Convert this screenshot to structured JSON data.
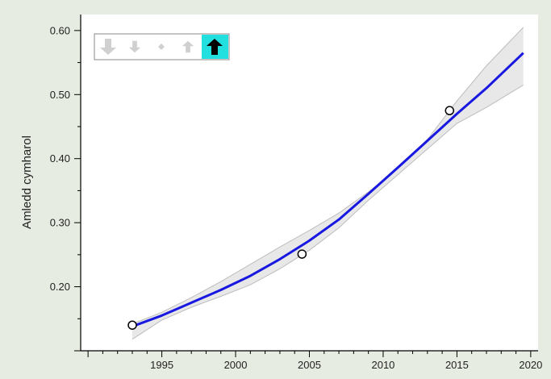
{
  "chart_data": {
    "type": "line",
    "title": "",
    "xlabel": "",
    "ylabel": "Amledd cymharol",
    "xlim": [
      1989.5,
      2020.5
    ],
    "ylim": [
      0.1,
      0.625
    ],
    "x_ticks": [
      1995,
      2000,
      2005,
      2010,
      2015,
      2020
    ],
    "x_tick_labels": [
      "1995",
      "2000",
      "2005",
      "2010",
      "2015",
      "2020"
    ],
    "y_ticks": [
      0.2,
      0.3,
      0.4,
      0.5,
      0.6
    ],
    "y_tick_labels": [
      "0.20",
      "0.30",
      "0.40",
      "0.50",
      "0.60"
    ],
    "grid": false,
    "colors": {
      "background": "#e6ece1",
      "plot_background": "#ffffff",
      "fit_line": "#1818e0",
      "band_fill": "#e8e8e8",
      "band_edge": "#bdbdbd",
      "trend_highlight": "#22e0e0"
    },
    "series": [
      {
        "kind": "fit",
        "x": [
          1993,
          1995,
          1997,
          1999,
          2001,
          2003,
          2005,
          2007,
          2009,
          2011,
          2013,
          2015,
          2017,
          2019.5
        ],
        "y": [
          0.138,
          0.155,
          0.175,
          0.195,
          0.217,
          0.243,
          0.272,
          0.305,
          0.345,
          0.386,
          0.428,
          0.47,
          0.51,
          0.565
        ]
      },
      {
        "kind": "band_upper",
        "x": [
          1993,
          1995,
          1997,
          1999,
          2001,
          2003,
          2005,
          2007,
          2009,
          2011,
          2013,
          2015,
          2017,
          2019.5
        ],
        "y": [
          0.142,
          0.16,
          0.183,
          0.208,
          0.235,
          0.262,
          0.288,
          0.315,
          0.348,
          0.385,
          0.43,
          0.49,
          0.545,
          0.605
        ]
      },
      {
        "kind": "band_lower",
        "x": [
          1993,
          1995,
          1997,
          1999,
          2001,
          2003,
          2005,
          2007,
          2009,
          2011,
          2013,
          2015,
          2017,
          2019.5
        ],
        "y": [
          0.118,
          0.148,
          0.168,
          0.185,
          0.203,
          0.228,
          0.257,
          0.292,
          0.335,
          0.375,
          0.415,
          0.455,
          0.48,
          0.515
        ]
      },
      {
        "kind": "observed",
        "x": [
          1993,
          2004.5,
          2014.5
        ],
        "y": [
          0.14,
          0.251,
          0.475
        ]
      }
    ],
    "trend_icons": [
      {
        "icon": "arrow-down-strong-icon",
        "active": false
      },
      {
        "icon": "arrow-down-weak-icon",
        "active": false
      },
      {
        "icon": "diamond-stable-icon",
        "active": false
      },
      {
        "icon": "arrow-up-weak-icon",
        "active": false
      },
      {
        "icon": "arrow-up-strong-icon",
        "active": true
      }
    ],
    "trend_legend_position": "top-left"
  }
}
